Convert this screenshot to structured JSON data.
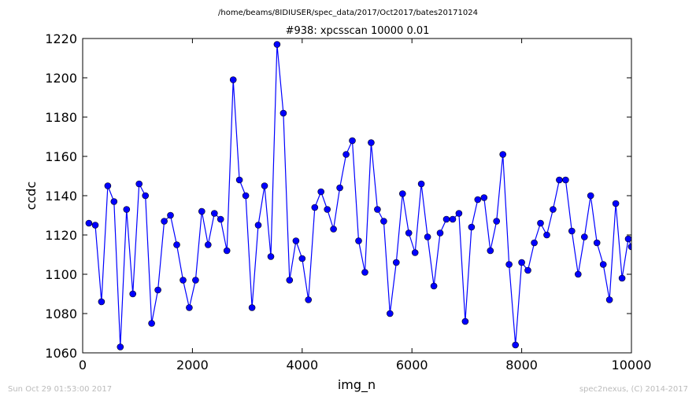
{
  "header": {
    "path": "/home/beams/8IDIUSER/spec_data/2017/Oct2017/bates20171024",
    "scan_title": "#938: xpcsscan 10000 0.01"
  },
  "footer": {
    "timestamp": "Sun Oct 29 01:53:00 2017",
    "credit": "spec2nexus, (C) 2014-2017"
  },
  "colors": {
    "series": "#0000ff",
    "axes": "#000000",
    "footer_text": "#bbbbbb"
  },
  "chart_data": {
    "type": "line",
    "title": "#938: xpcsscan 10000 0.01",
    "xlabel": "img_n",
    "ylabel": "ccdc",
    "xlim": [
      0,
      10000
    ],
    "ylim": [
      1060,
      1220
    ],
    "xticks": [
      0,
      2000,
      4000,
      6000,
      8000,
      10000
    ],
    "yticks": [
      1060,
      1080,
      1100,
      1120,
      1140,
      1160,
      1180,
      1200,
      1220
    ],
    "grid": false,
    "marker": "circle",
    "series": [
      {
        "x": [
          114,
          229,
          343,
          457,
          571,
          686,
          800,
          914,
          1029,
          1143,
          1257,
          1371,
          1486,
          1600,
          1714,
          1829,
          1943,
          2057,
          2171,
          2286,
          2400,
          2514,
          2629,
          2743,
          2857,
          2971,
          3086,
          3200,
          3314,
          3429,
          3543,
          3657,
          3771,
          3886,
          4000,
          4114,
          4229,
          4343,
          4457,
          4571,
          4686,
          4800,
          4914,
          5029,
          5143,
          5257,
          5371,
          5486,
          5600,
          5714,
          5829,
          5943,
          6057,
          6171,
          6286,
          6400,
          6514,
          6629,
          6743,
          6857,
          6971,
          7086,
          7200,
          7314,
          7429,
          7543,
          7657,
          7771,
          7886,
          8000,
          8114,
          8229,
          8343,
          8457,
          8571,
          8686,
          8800,
          8914,
          9029,
          9143,
          9257,
          9371,
          9486,
          9600,
          9714,
          9829,
          9943,
          10000
        ],
        "y": [
          1126,
          1125,
          1086,
          1145,
          1137,
          1063,
          1133,
          1090,
          1146,
          1140,
          1075,
          1092,
          1127,
          1130,
          1115,
          1097,
          1083,
          1097,
          1132,
          1115,
          1131,
          1128,
          1112,
          1199,
          1148,
          1140,
          1083,
          1125,
          1145,
          1109,
          1217,
          1182,
          1097,
          1117,
          1108,
          1087,
          1134,
          1142,
          1133,
          1123,
          1144,
          1161,
          1168,
          1117,
          1101,
          1167,
          1133,
          1127,
          1080,
          1106,
          1141,
          1121,
          1111,
          1146,
          1119,
          1094,
          1121,
          1128,
          1128,
          1131,
          1076,
          1124,
          1138,
          1139,
          1112,
          1127,
          1161,
          1105,
          1064,
          1106,
          1102,
          1116,
          1126,
          1120,
          1133,
          1148,
          1148,
          1122,
          1100,
          1119,
          1140,
          1116,
          1105,
          1087,
          1136,
          1098,
          1118,
          1114
        ]
      }
    ]
  }
}
